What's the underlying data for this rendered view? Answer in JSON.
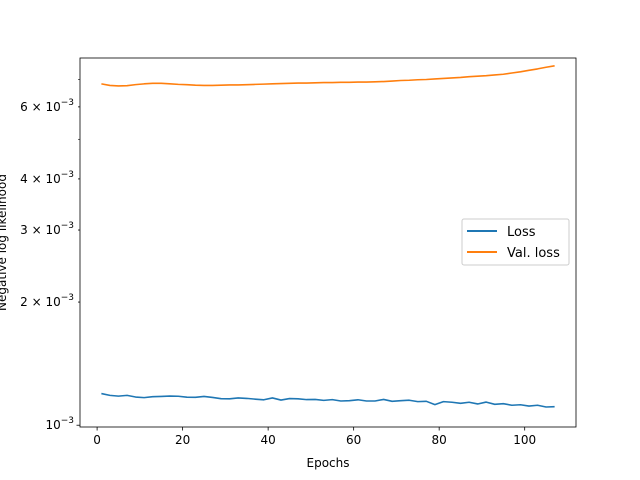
{
  "chart_data": {
    "type": "line",
    "title": "",
    "xlabel": "Epochs",
    "ylabel": "Negative log likelihood",
    "yscale": "log",
    "xlim": [
      -4,
      112
    ],
    "ylim": [
      0.00099,
      0.0079
    ],
    "x_ticks": [
      {
        "value": 0,
        "label": "0"
      },
      {
        "value": 20,
        "label": "20"
      },
      {
        "value": 40,
        "label": "40"
      },
      {
        "value": 60,
        "label": "60"
      },
      {
        "value": 80,
        "label": "80"
      },
      {
        "value": 100,
        "label": "100"
      }
    ],
    "y_ticks": [
      {
        "value": 0.001,
        "base": "10",
        "exp": "−3"
      },
      {
        "value": 0.002,
        "mant": "2",
        "base": "10",
        "exp": "−3"
      },
      {
        "value": 0.003,
        "mant": "3",
        "base": "10",
        "exp": "−3"
      },
      {
        "value": 0.004,
        "mant": "4",
        "base": "10",
        "exp": "−3"
      },
      {
        "value": 0.006,
        "mant": "6",
        "base": "10",
        "exp": "−3"
      }
    ],
    "y_minor_ticks": [
      0.005,
      0.007
    ],
    "legend_position": "center-right",
    "series": [
      {
        "name": "Loss",
        "color": "#1f77b4",
        "x": [
          1,
          3,
          5,
          7,
          9,
          11,
          13,
          15,
          17,
          19,
          21,
          23,
          25,
          27,
          29,
          31,
          33,
          35,
          37,
          39,
          41,
          43,
          45,
          47,
          49,
          51,
          53,
          55,
          57,
          59,
          61,
          63,
          65,
          67,
          69,
          71,
          73,
          75,
          77,
          79,
          81,
          83,
          85,
          87,
          89,
          91,
          93,
          95,
          97,
          99,
          101,
          103,
          105,
          107
        ],
        "y": [
          0.001195,
          0.001183,
          0.001178,
          0.001183,
          0.001172,
          0.001168,
          0.001174,
          0.001176,
          0.001178,
          0.001177,
          0.001171,
          0.00117,
          0.001176,
          0.001169,
          0.001161,
          0.00116,
          0.001166,
          0.001163,
          0.001158,
          0.001154,
          0.001166,
          0.001152,
          0.001162,
          0.00116,
          0.001155,
          0.001156,
          0.00115,
          0.001155,
          0.001146,
          0.001148,
          0.001154,
          0.001146,
          0.001146,
          0.001156,
          0.001144,
          0.001148,
          0.001151,
          0.001142,
          0.001144,
          0.001123,
          0.001142,
          0.001138,
          0.001131,
          0.001138,
          0.001127,
          0.001139,
          0.001125,
          0.001129,
          0.001119,
          0.001122,
          0.001114,
          0.001119,
          0.001108,
          0.00111
        ]
      },
      {
        "name": "Val. loss",
        "color": "#ff7f0e",
        "x": [
          1,
          3,
          5,
          7,
          9,
          11,
          13,
          15,
          17,
          19,
          21,
          23,
          25,
          27,
          29,
          31,
          33,
          35,
          37,
          39,
          41,
          43,
          45,
          47,
          49,
          51,
          53,
          55,
          57,
          59,
          61,
          63,
          65,
          67,
          69,
          71,
          73,
          75,
          77,
          79,
          81,
          83,
          85,
          87,
          89,
          91,
          93,
          95,
          97,
          99,
          101,
          103,
          105,
          107
        ],
        "y": [
          0.00683,
          0.00677,
          0.00675,
          0.00676,
          0.0068,
          0.00683,
          0.00685,
          0.00685,
          0.00683,
          0.00681,
          0.0068,
          0.00678,
          0.00677,
          0.00677,
          0.00678,
          0.00679,
          0.00679,
          0.0068,
          0.00681,
          0.00682,
          0.00683,
          0.00684,
          0.00685,
          0.00686,
          0.00686,
          0.00687,
          0.00688,
          0.00688,
          0.00689,
          0.00689,
          0.0069,
          0.0069,
          0.00691,
          0.00692,
          0.00694,
          0.00696,
          0.00697,
          0.00699,
          0.007,
          0.00702,
          0.00704,
          0.00706,
          0.00708,
          0.00711,
          0.00713,
          0.00715,
          0.00718,
          0.00721,
          0.00726,
          0.00731,
          0.00737,
          0.00743,
          0.0075,
          0.00756
        ]
      }
    ]
  }
}
